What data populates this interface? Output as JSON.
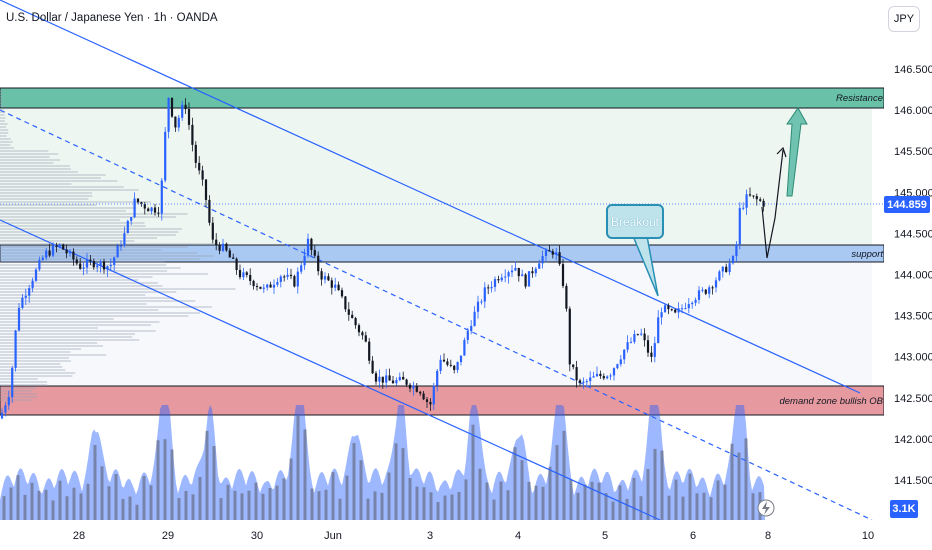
{
  "header": {
    "symbol_title": "U.S. Dollar / Japanese Yen · 1h · OANDA",
    "currency_button": "JPY"
  },
  "chart_data": {
    "type": "candlestick",
    "title": "U.S. Dollar / Japanese Yen · 1h · OANDA",
    "y_axis": {
      "ticks": [
        "146.500",
        "146.000",
        "145.500",
        "145.000",
        "144.500",
        "144.000",
        "143.500",
        "143.000",
        "142.500",
        "142.000",
        "141.500"
      ],
      "range": [
        141.0,
        146.9
      ]
    },
    "x_axis": {
      "ticks": [
        "28",
        "29",
        "30",
        "Jun",
        "3",
        "4",
        "5",
        "6",
        "8",
        "10"
      ]
    },
    "current_price": "144.859",
    "volume_label": "3.1K",
    "zones": [
      {
        "name": "Resistance",
        "from": 146.05,
        "to": 146.27,
        "color": "#69c2a8"
      },
      {
        "name": "support",
        "from": 144.15,
        "to": 144.35,
        "color": "#a9c8f2"
      },
      {
        "name": "demand zone bullish OB",
        "from": 142.28,
        "to": 142.66,
        "color": "#e69aa0"
      }
    ],
    "annotations": {
      "breakout": "Breakout"
    },
    "price_path": [
      [
        "27",
        142.3
      ],
      [
        "27.5",
        143.9
      ],
      [
        "28",
        144.1
      ],
      [
        "28.5",
        144.2
      ],
      [
        "29",
        146.2
      ],
      [
        "29.3",
        145.8
      ],
      [
        "29.5",
        144.4
      ],
      [
        "30",
        144.0
      ],
      [
        "Jun",
        144.2
      ],
      [
        "Jun.5",
        143.5
      ],
      [
        "3",
        142.5
      ],
      [
        "3.5",
        143.1
      ],
      [
        "4",
        144.2
      ],
      [
        "4.4",
        144.3
      ],
      [
        "4.5",
        142.7
      ],
      [
        "5",
        142.9
      ],
      [
        "5.5",
        143.6
      ],
      [
        "6",
        143.9
      ],
      [
        "6.5",
        144.9
      ],
      [
        "7",
        144.8
      ]
    ],
    "colors": {
      "up": "#2962ff",
      "down": "#131722",
      "channel": "#2962ff",
      "resistance": "#69c2a8",
      "support": "#a9c8f2",
      "demand": "#e69aa0",
      "forecast_arrow": "#6fc3b0"
    }
  }
}
